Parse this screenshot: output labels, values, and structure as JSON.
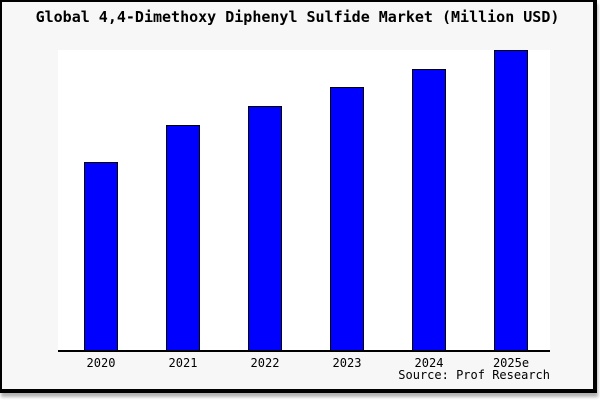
{
  "title": "Global 4,4-Dimethoxy Diphenyl Sulfide Market (Million USD)",
  "source_label": "Source: Prof Research",
  "chart_data": {
    "type": "bar",
    "title": "Global 4,4-Dimethoxy Diphenyl Sulfide Market (Million USD)",
    "categories": [
      "2020",
      "2021",
      "2022",
      "2023",
      "2024",
      "2025e"
    ],
    "values": [
      62.7,
      75.0,
      81.3,
      87.7,
      93.7,
      100.0
    ],
    "values_unit": "relative bar height, percent of 2025e bar (chart displays no numeric y-axis labels)",
    "xlabel": "",
    "ylabel": "",
    "ylim": [
      0,
      100
    ],
    "grid": false,
    "legend": "none",
    "y_axis_ticks": "none",
    "annotations": [
      "Source: Prof Research"
    ],
    "bar_color": "#0000ff",
    "bar_border_color": "#000000",
    "background_color": "#f7f7f7",
    "plot_background_color": "#ffffff",
    "axis_line_color": "#000000",
    "title_color": "#000000"
  }
}
